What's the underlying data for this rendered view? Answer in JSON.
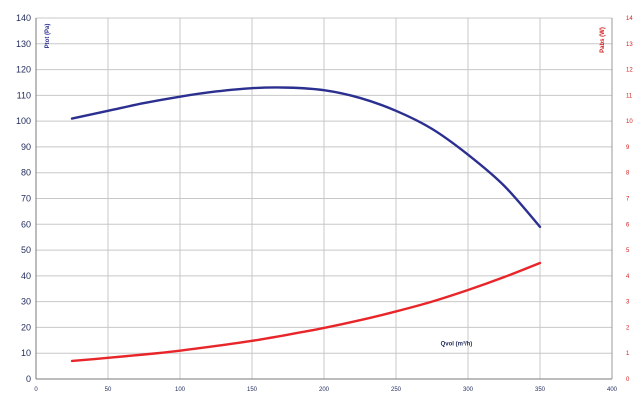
{
  "chart_data": {
    "type": "line",
    "xlabel": "Qvol (m³/h)",
    "ylabel_left": "Ptot (Pa)",
    "ylabel_right": "Pabs (W)",
    "xlim": [
      0,
      400
    ],
    "ylim_left": [
      0,
      140
    ],
    "ylim_right": [
      0,
      14
    ],
    "x_ticks": [
      "0",
      "50",
      "100",
      "150",
      "200",
      "250",
      "300",
      "350",
      "400"
    ],
    "y_ticks_left": [
      "0",
      "10",
      "20",
      "30",
      "40",
      "50",
      "60",
      "70",
      "80",
      "90",
      "100",
      "110",
      "120",
      "130",
      "140"
    ],
    "y_ticks_right": [
      "0",
      "1",
      "2",
      "3",
      "4",
      "5",
      "6",
      "7",
      "8",
      "9",
      "10",
      "11",
      "12",
      "13",
      "14"
    ],
    "grid": true,
    "series": [
      {
        "axis": "left",
        "color": "#2b2f8f",
        "x": [
          25,
          50,
          75,
          100,
          125,
          150,
          175,
          200,
          225,
          250,
          275,
          300,
          325,
          350
        ],
        "values": [
          101,
          104,
          107,
          109.5,
          111.5,
          112.8,
          113,
          112,
          109,
          104,
          97,
          87,
          75,
          59
        ]
      },
      {
        "axis": "right",
        "color": "#e8262a",
        "x": [
          25,
          50,
          75,
          100,
          125,
          150,
          175,
          200,
          225,
          250,
          275,
          300,
          325,
          350
        ],
        "values": [
          0.7,
          0.82,
          0.95,
          1.1,
          1.28,
          1.48,
          1.72,
          1.98,
          2.28,
          2.62,
          3.0,
          3.45,
          3.95,
          4.5
        ]
      }
    ]
  }
}
